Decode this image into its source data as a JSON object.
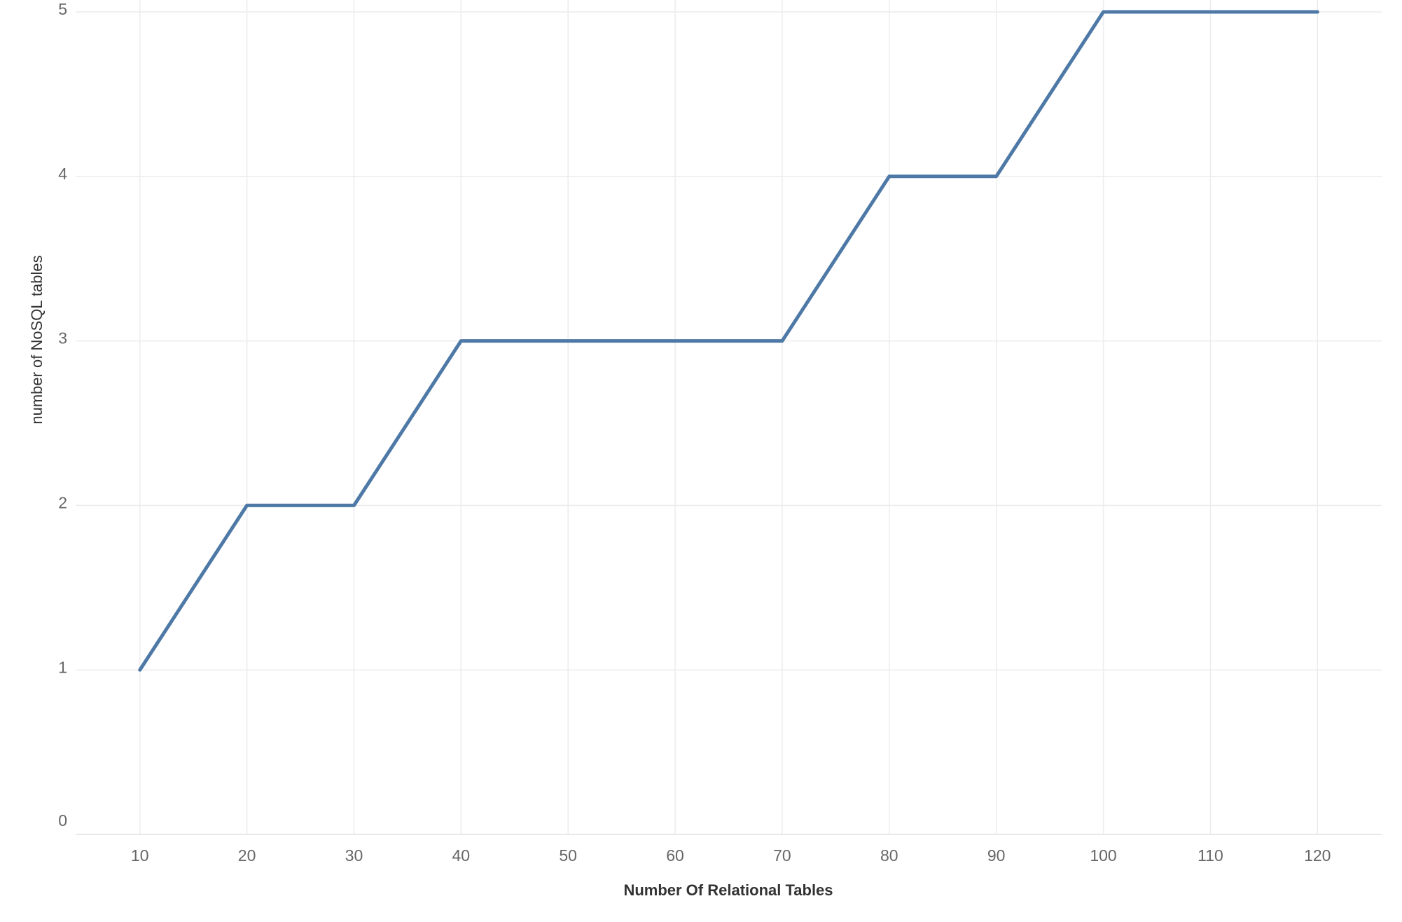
{
  "chart_data": {
    "type": "line",
    "x_label": "Number Of Relational Tables",
    "y_label": "number of NoSQL tables",
    "x": [
      10,
      20,
      30,
      40,
      50,
      60,
      70,
      80,
      90,
      100,
      110,
      120
    ],
    "series": [
      {
        "name": "number of NoSQL tables",
        "color": "#4e79a7",
        "values": [
          1,
          2,
          2,
          3,
          3,
          3,
          3,
          4,
          4,
          5,
          5,
          5
        ]
      }
    ],
    "xlim": [
      4,
      126
    ],
    "ylim": [
      0,
      5
    ],
    "xticks": [
      10,
      20,
      30,
      40,
      50,
      60,
      70,
      80,
      90,
      100,
      110,
      120
    ],
    "yticks": [
      0,
      1,
      2,
      3,
      4,
      5
    ],
    "grid": true
  }
}
